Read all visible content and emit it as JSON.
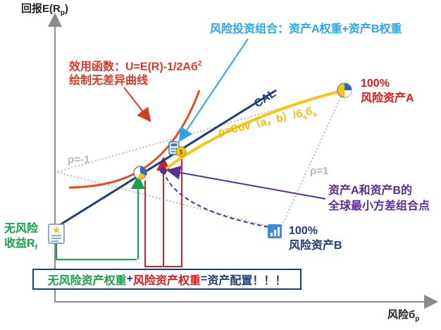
{
  "axes": {
    "y_label": "回报E(R",
    "y_sub": "p",
    "y_close": ")",
    "x_label": "风险б",
    "x_sub": "p"
  },
  "annotations": {
    "portfolio_note": "风险投资组合：资产A权重+资产B权重",
    "utility_line1": "效用函数：U=E(R)-1/2Aб",
    "utility_sup": "2",
    "utility_line2": "绘制无差异曲线",
    "cal": "CAL",
    "asset_a_pct": "100%",
    "asset_a_name": "风险资产A",
    "asset_b_pct": "100%",
    "asset_b_name": "风险资产B",
    "rho_neg": "ρ=-1",
    "rho_pos": "ρ=1",
    "rho_formula_main": "ρ=Cov（a，b）/б",
    "rho_formula_sub_a": "a",
    "rho_formula_mid": "б",
    "rho_formula_sub_b": "b",
    "min_var_line1": "资产A和资产B的",
    "min_var_line2": "全球最小方差组合点",
    "riskfree_line1": "无风险",
    "riskfree_line2": "收益R",
    "riskfree_sub": "f"
  },
  "allocation_box": {
    "part1": "无风险资产权重",
    "plus": "+",
    "part2": "风险资产权重",
    "equals": "=",
    "part3": "资产配置！！！"
  },
  "colors": {
    "cal": "#1f3d7a",
    "frontier": "#f5c518",
    "indifference": "#e84a1f",
    "green_guides": "#14a14a",
    "red_guides": "#c0283a",
    "purple": "#5a2d91",
    "blue_arrow": "#2aa6e6",
    "gray_dotted": "#b8b8b8"
  },
  "icons": [
    "document-star-icon",
    "pie-chart-icon",
    "calculator-icon",
    "money-bag-icon",
    "bar-chart-icon"
  ]
}
